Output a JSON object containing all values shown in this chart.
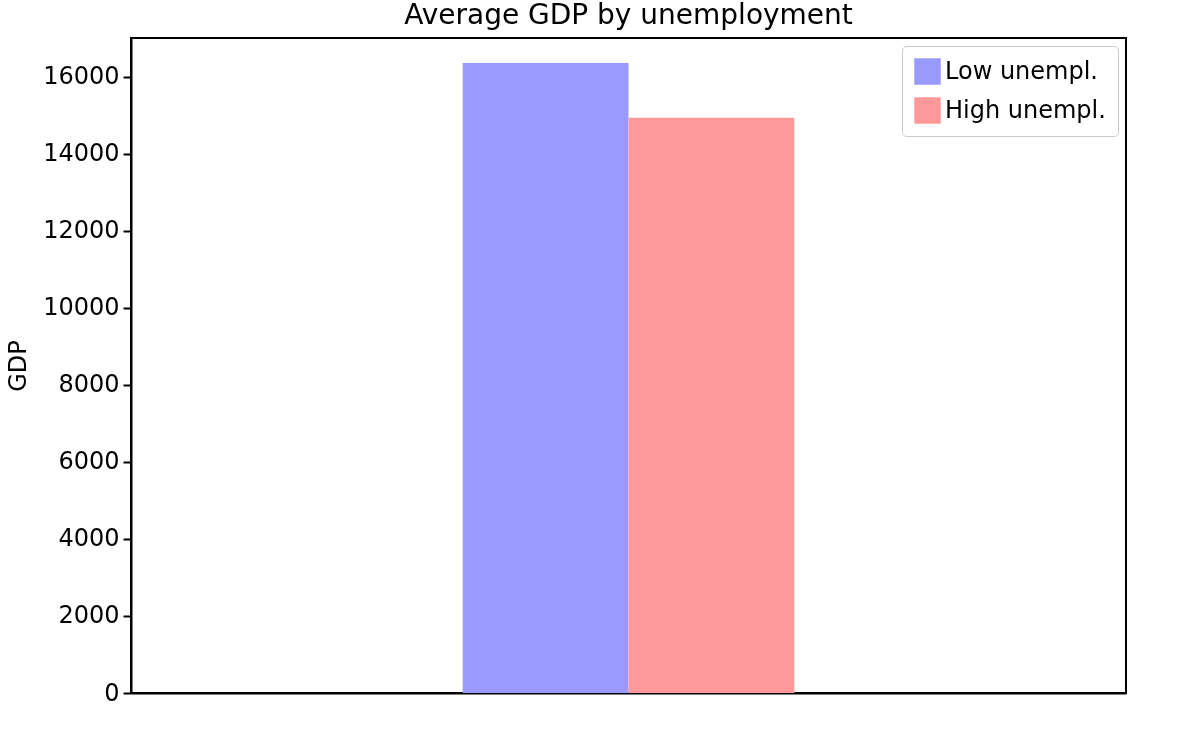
{
  "chart_data": {
    "type": "bar",
    "title": "Average GDP by unemployment",
    "ylabel": "GDP",
    "categories": [
      null
    ],
    "series": [
      {
        "name": "Low unempl.",
        "color": "#9999ff",
        "values": [
          16350
        ]
      },
      {
        "name": "High unempl.",
        "color": "#ff9999",
        "values": [
          14930
        ]
      }
    ],
    "ylim": [
      0,
      17000
    ],
    "yticks": [
      0,
      2000,
      4000,
      6000,
      8000,
      10000,
      12000,
      14000,
      16000
    ],
    "grid": false,
    "legend": "top right"
  }
}
